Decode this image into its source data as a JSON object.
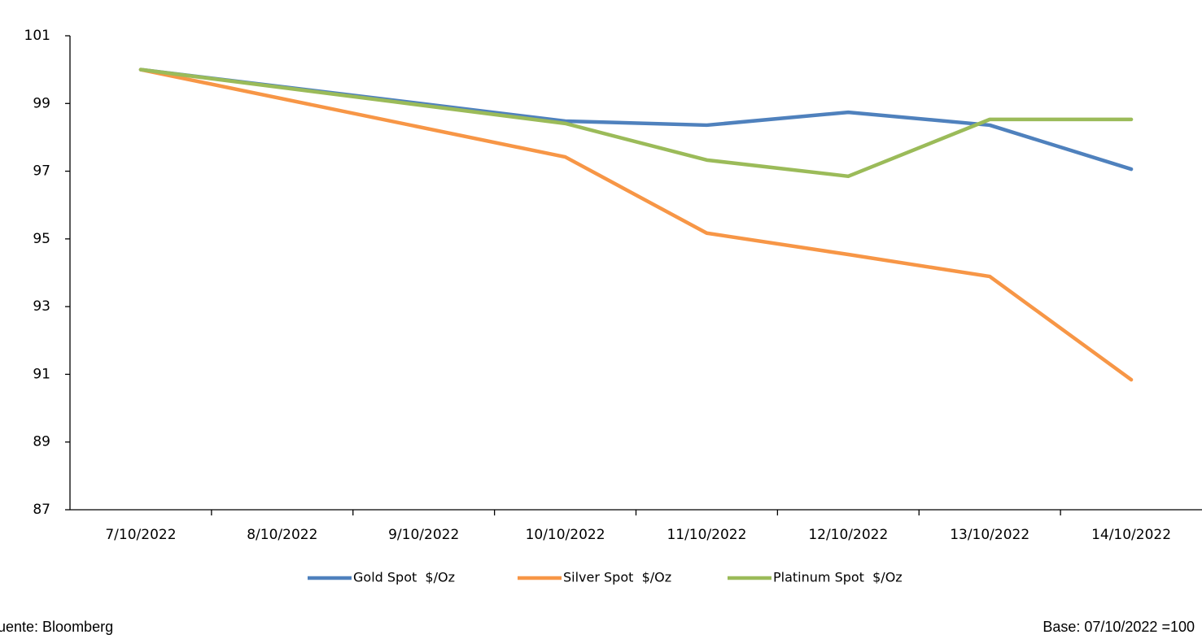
{
  "chart_data": {
    "type": "line",
    "categories": [
      "7/10/2022",
      "8/10/2022",
      "9/10/2022",
      "10/10/2022",
      "11/10/2022",
      "12/10/2022",
      "13/10/2022",
      "14/10/2022"
    ],
    "series": [
      {
        "name": "Gold Spot  $/Oz",
        "color": "#4f81bd",
        "values": [
          100,
          null,
          null,
          98.48,
          98.36,
          98.74,
          98.36,
          97.06
        ]
      },
      {
        "name": "Silver Spot  $/Oz",
        "color": "#f79646",
        "values": [
          100,
          null,
          null,
          97.42,
          95.17,
          94.54,
          93.89,
          90.84
        ]
      },
      {
        "name": "Platinum Spot  $/Oz",
        "color": "#9bbb59",
        "values": [
          100,
          null,
          null,
          98.41,
          97.33,
          96.85,
          98.53,
          98.53
        ]
      }
    ],
    "ylim": [
      87,
      101
    ],
    "yticks": [
      87,
      89,
      91,
      93,
      95,
      97,
      99,
      101
    ],
    "grid": false,
    "legend": "bottom",
    "source": "Fuente: Bloomberg",
    "note": "Base: 07/10/2022 =100"
  }
}
